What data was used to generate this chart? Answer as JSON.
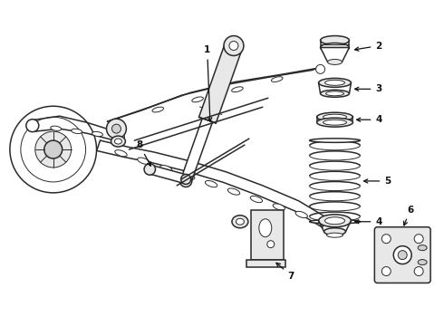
{
  "bg_color": "#ffffff",
  "line_color": "#2a2a2a",
  "fill_light": "#e8e8e8",
  "fill_mid": "#d0d0d0",
  "figsize": [
    4.9,
    3.6
  ],
  "dpi": 100,
  "parts": {
    "2_label": "2",
    "3_label": "3",
    "4a_label": "4",
    "5_label": "5",
    "4b_label": "4",
    "6_label": "6",
    "7_label": "7",
    "8_label": "8",
    "1_label": "1"
  }
}
